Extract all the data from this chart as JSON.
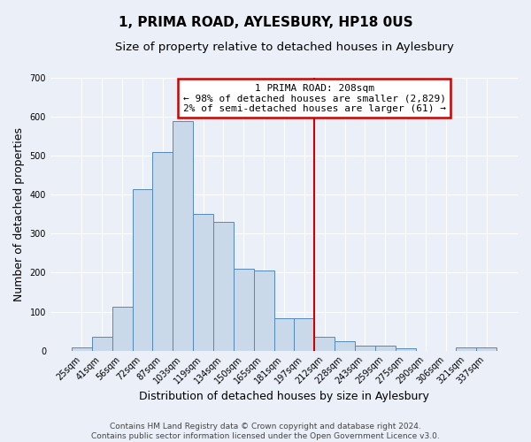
{
  "title": "1, PRIMA ROAD, AYLESBURY, HP18 0US",
  "subtitle": "Size of property relative to detached houses in Aylesbury",
  "xlabel": "Distribution of detached houses by size in Aylesbury",
  "ylabel": "Number of detached properties",
  "bar_labels": [
    "25sqm",
    "41sqm",
    "56sqm",
    "72sqm",
    "87sqm",
    "103sqm",
    "119sqm",
    "134sqm",
    "150sqm",
    "165sqm",
    "181sqm",
    "197sqm",
    "212sqm",
    "228sqm",
    "243sqm",
    "259sqm",
    "275sqm",
    "290sqm",
    "306sqm",
    "321sqm",
    "337sqm"
  ],
  "bar_heights": [
    8,
    35,
    113,
    415,
    510,
    590,
    350,
    330,
    210,
    205,
    83,
    83,
    35,
    25,
    12,
    12,
    5,
    0,
    0,
    8,
    8
  ],
  "bar_color": "#c9d9ea",
  "bar_edge_color": "#5588bb",
  "vline_x_index": 11.5,
  "vline_color": "#cc0000",
  "annotation_text": "1 PRIMA ROAD: 208sqm\n← 98% of detached houses are smaller (2,829)\n2% of semi-detached houses are larger (61) →",
  "annotation_box_color": "#cc0000",
  "annotation_bg_color": "#ffffff",
  "footer_text": "Contains HM Land Registry data © Crown copyright and database right 2024.\nContains public sector information licensed under the Open Government Licence v3.0.",
  "ylim": [
    0,
    700
  ],
  "yticks": [
    0,
    100,
    200,
    300,
    400,
    500,
    600,
    700
  ],
  "background_color": "#eaeff8",
  "grid_color": "#ffffff",
  "title_fontsize": 11,
  "subtitle_fontsize": 9.5,
  "ylabel_fontsize": 9,
  "xlabel_fontsize": 9,
  "tick_fontsize": 7,
  "annotation_fontsize": 8,
  "footer_fontsize": 6.5
}
